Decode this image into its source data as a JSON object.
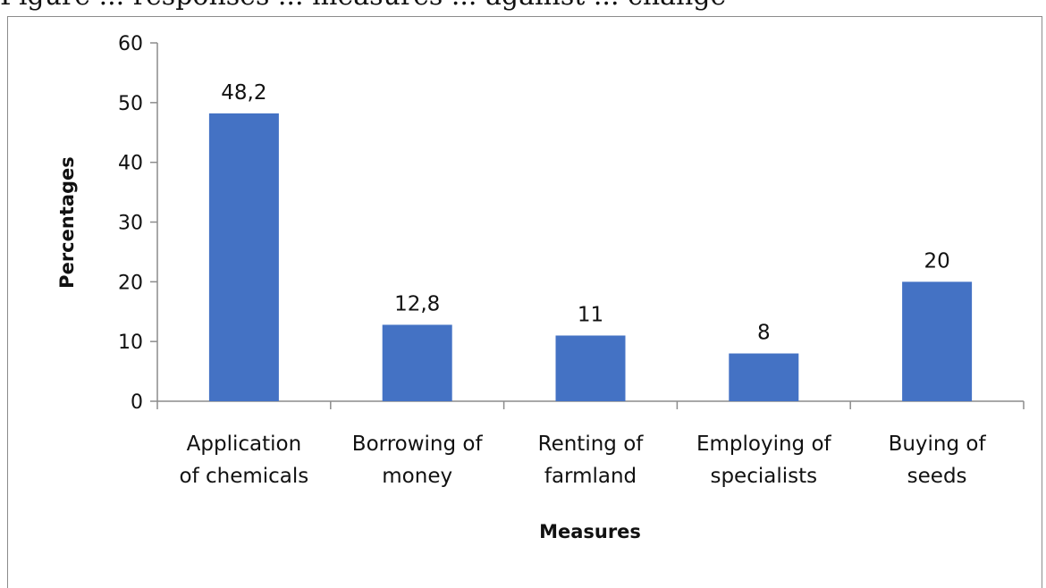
{
  "caption": "Figure ... responses ... measures ... against ... change",
  "chart_data": {
    "type": "bar",
    "categories": [
      [
        "Application",
        "of chemicals"
      ],
      [
        "Borrowing of",
        "money"
      ],
      [
        "Renting of",
        "farmland"
      ],
      [
        "Employing of",
        "specialists"
      ],
      [
        "Buying of",
        "seeds"
      ]
    ],
    "values": [
      48.2,
      12.8,
      11,
      8,
      20
    ],
    "data_labels": [
      "48,2",
      "12,8",
      "11",
      "8",
      "20"
    ],
    "yticks": [
      0,
      10,
      20,
      30,
      40,
      50,
      60
    ],
    "ylim": [
      0,
      60
    ],
    "xlabel": "Measures",
    "ylabel": "Percentages",
    "bar_color": "#4472c4",
    "grid": false,
    "legend": "none"
  }
}
